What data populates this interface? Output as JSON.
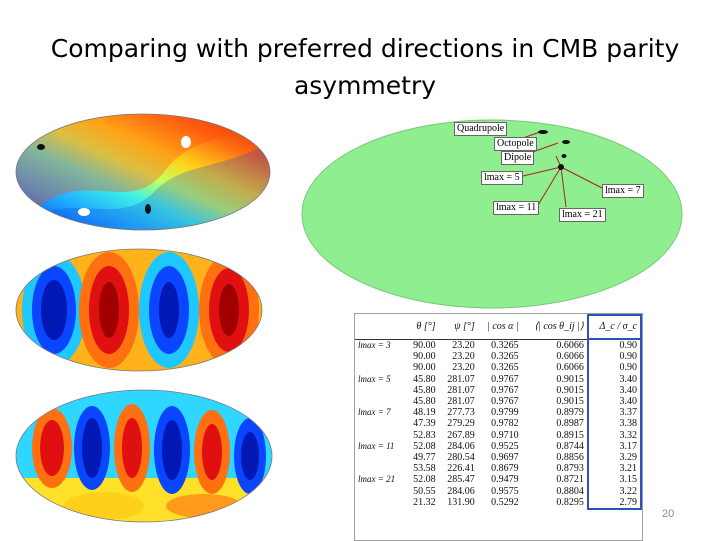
{
  "title": "Comparing with preferred directions in CMB parity asymmetry",
  "page_number": "20",
  "directions_map": {
    "labels": {
      "quadrupole": "Quadrupole",
      "octopole": "Octopole",
      "dipole": "Dipole",
      "lmax5": "lmax = 5",
      "lmax7": "lmax = 7",
      "lmax11": "lmax = 11",
      "lmax21": "lmax = 21"
    }
  },
  "table": {
    "headers": [
      "",
      "θ [°]",
      "ψ [°]",
      "| cos α |",
      "⟨| cos θ_ij |⟩",
      "Δ_c / σ_c"
    ],
    "groups": [
      {
        "label": "lmax = 3",
        "rows": [
          [
            "90.00",
            "23.20",
            "0.3265",
            "0.6066",
            "0.90"
          ],
          [
            "90.00",
            "23.20",
            "0.3265",
            "0.6066",
            "0.90"
          ],
          [
            "90.00",
            "23.20",
            "0.3265",
            "0.6066",
            "0.90"
          ]
        ]
      },
      {
        "label": "lmax = 5",
        "rows": [
          [
            "45.80",
            "281.07",
            "0.9767",
            "0.9015",
            "3.40"
          ],
          [
            "45.80",
            "281.07",
            "0.9767",
            "0.9015",
            "3.40"
          ],
          [
            "45.80",
            "281.07",
            "0.9767",
            "0.9015",
            "3.40"
          ]
        ]
      },
      {
        "label": "lmax = 7",
        "rows": [
          [
            "48.19",
            "277.73",
            "0.9799",
            "0.8979",
            "3.37"
          ],
          [
            "47.39",
            "279.29",
            "0.9782",
            "0.8987",
            "3.38"
          ],
          [
            "52.83",
            "267.89",
            "0.9710",
            "0.8915",
            "3.32"
          ]
        ]
      },
      {
        "label": "lmax = 11",
        "rows": [
          [
            "52.08",
            "284.06",
            "0.9525",
            "0.8744",
            "3.17"
          ],
          [
            "49.77",
            "280.54",
            "0.9697",
            "0.8856",
            "3.29"
          ],
          [
            "53.58",
            "226.41",
            "0.8679",
            "0.8793",
            "3.21"
          ]
        ]
      },
      {
        "label": "lmax = 21",
        "rows": [
          [
            "52.08",
            "285.47",
            "0.9479",
            "0.8721",
            "3.15"
          ],
          [
            "50.55",
            "284.06",
            "0.9575",
            "0.8804",
            "3.22"
          ],
          [
            "21.32",
            "131.90",
            "0.5292",
            "0.8295",
            "2.79"
          ]
        ]
      }
    ]
  },
  "colors": {
    "map_green": "#8fee8f",
    "highlight_box": "#2d4fbf"
  }
}
